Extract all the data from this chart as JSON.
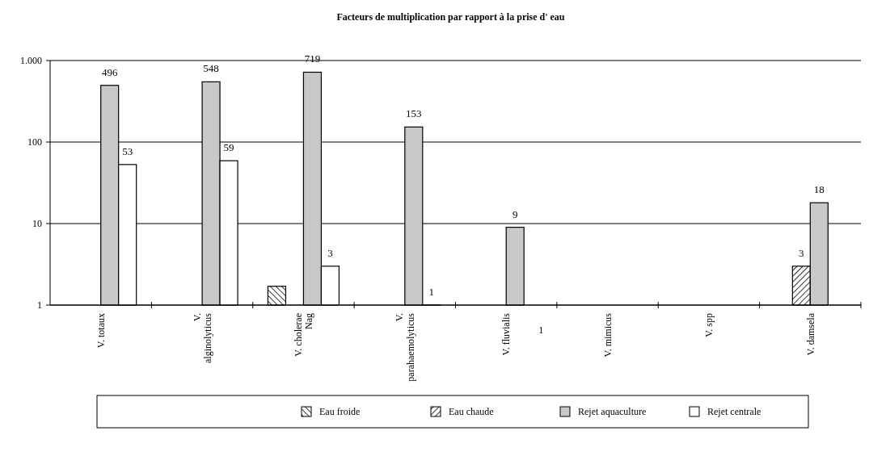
{
  "chart_data": {
    "type": "bar",
    "title": "Facteurs de multiplication par rapport à la prise d' eau",
    "categories": [
      "V. totaux",
      "V. alginolyticus",
      "V. cholerae Nag",
      "V. parahaemolyticus",
      "V. fluvialis",
      "V. mimicus",
      "V. spp",
      "V. damsela"
    ],
    "series": [
      {
        "name": "Eau froide",
        "color": "#000000",
        "values": [
          null,
          null,
          1.7,
          null,
          null,
          null,
          null,
          null
        ],
        "value_labels": [
          null,
          null,
          null,
          null,
          null,
          null,
          null,
          null
        ]
      },
      {
        "name": "Eau chaude",
        "color": "#000000",
        "values": [
          null,
          null,
          null,
          null,
          null,
          null,
          null,
          3
        ],
        "value_labels": [
          null,
          null,
          null,
          null,
          null,
          null,
          null,
          "3"
        ]
      },
      {
        "name": "Rejet aquaculture",
        "color": "#c8c8c8",
        "values": [
          496,
          548,
          719,
          153,
          9,
          null,
          null,
          18
        ],
        "value_labels": [
          "496",
          "548",
          "719",
          "153",
          "9",
          null,
          null,
          "18"
        ]
      },
      {
        "name": "Rejet centrale",
        "color": "#ffffff",
        "values": [
          53,
          59,
          3,
          1,
          null,
          null,
          null,
          null
        ],
        "value_labels": [
          "53",
          "59",
          "3",
          "1",
          null,
          null,
          null,
          null
        ]
      }
    ],
    "log": true,
    "ylim": [
      1,
      1000
    ],
    "yticks": [
      1,
      10,
      100,
      {
        "value": 1000,
        "label": "1.000"
      }
    ],
    "grid": "y",
    "legend": "bottom",
    "annotations": [
      "1"
    ]
  }
}
